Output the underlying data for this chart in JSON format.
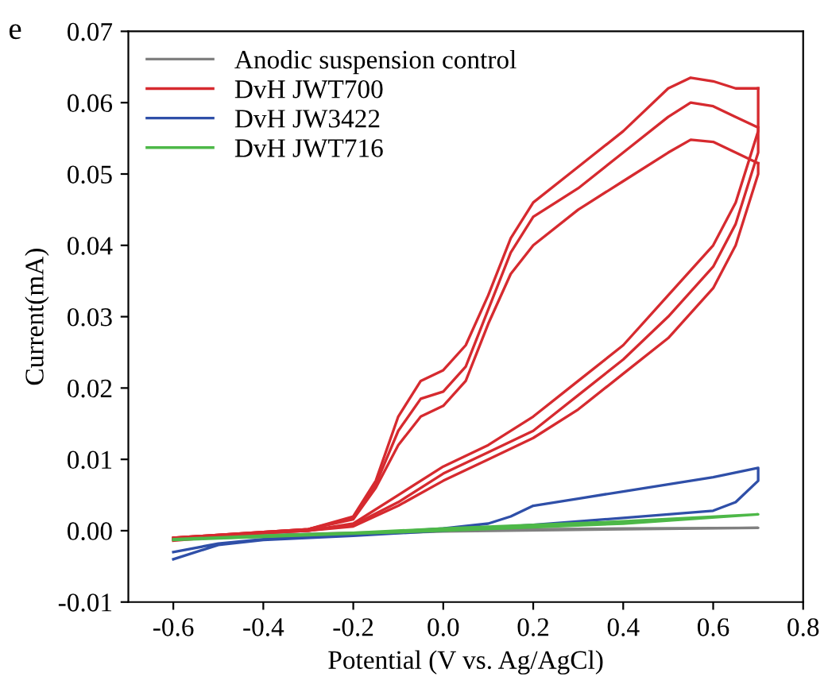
{
  "chart_data": {
    "type": "line",
    "xlabel": "Potential (V vs. Ag/AgCl)",
    "ylabel": "Current(mA)",
    "annotations": [
      "e"
    ],
    "xlim": [
      -0.7,
      0.8
    ],
    "xticks": [
      {
        "value": -0.6,
        "label": "-0.6"
      },
      {
        "value": -0.4,
        "label": "-0.4"
      },
      {
        "value": -0.2,
        "label": "-0.2"
      },
      {
        "value": 0.0,
        "label": "0.0"
      },
      0.2,
      0.4,
      0.6,
      0.8
    ],
    "ylim": [
      -0.01,
      0.07
    ],
    "yticks": [
      {
        "value": -0.01,
        "label": "-0.01"
      },
      {
        "value": 0.0,
        "label": "0.00"
      },
      0.01,
      0.02,
      0.03,
      0.04,
      0.05,
      0.06,
      0.07
    ],
    "grid": false,
    "legend": "top left",
    "marker": "none",
    "line_style": "solid",
    "series": [
      {
        "name": "Anodic suspension control",
        "color": "#808080",
        "x": [
          -0.6,
          -0.4,
          -0.2,
          0.0,
          0.2,
          0.4,
          0.7,
          0.4,
          0.0,
          -0.6
        ],
        "values": [
          -0.001,
          -0.0006,
          -0.0003,
          0.0,
          0.0002,
          0.0003,
          0.0004,
          0.0002,
          -0.0001,
          -0.0012
        ]
      },
      {
        "name": "DvH JWT700",
        "color": "#d62a2f",
        "x": [
          -0.6,
          -0.4,
          -0.3,
          -0.2,
          -0.15,
          -0.1,
          -0.05,
          0.0,
          0.05,
          0.1,
          0.15,
          0.2,
          0.3,
          0.4,
          0.5,
          0.55,
          0.6,
          0.65,
          0.7
        ],
        "values": [
          -0.001,
          -0.0002,
          0.0002,
          0.002,
          0.007,
          0.016,
          0.021,
          0.0225,
          0.026,
          0.033,
          0.041,
          0.046,
          0.051,
          0.056,
          0.062,
          0.0635,
          0.063,
          0.062,
          0.062
        ]
      },
      {
        "color": "#d62a2f",
        "x": [
          0.7,
          0.7,
          0.65,
          0.6,
          0.5,
          0.4,
          0.3,
          0.2,
          0.1,
          0.0,
          -0.1,
          -0.2,
          -0.3,
          -0.4,
          -0.6,
          -0.6,
          -0.4,
          -0.3,
          -0.2,
          -0.15,
          -0.1,
          -0.05,
          0.0,
          0.05,
          0.1,
          0.15,
          0.2,
          0.3,
          0.4,
          0.5,
          0.55,
          0.6,
          0.65,
          0.7
        ],
        "values": [
          0.062,
          0.056,
          0.046,
          0.04,
          0.033,
          0.026,
          0.021,
          0.016,
          0.012,
          0.009,
          0.005,
          0.001,
          0.0,
          -0.0003,
          -0.0012,
          -0.001,
          -0.0002,
          0.0002,
          0.0018,
          0.0065,
          0.014,
          0.0185,
          0.0195,
          0.023,
          0.031,
          0.039,
          0.044,
          0.048,
          0.053,
          0.058,
          0.06,
          0.0595,
          0.058,
          0.0565
        ]
      },
      {
        "color": "#d62a2f",
        "x": [
          0.7,
          0.7,
          0.65,
          0.6,
          0.5,
          0.4,
          0.3,
          0.2,
          0.1,
          0.0,
          -0.1,
          -0.2,
          -0.3,
          -0.4,
          -0.6,
          -0.6,
          -0.4,
          -0.3,
          -0.2,
          -0.15,
          -0.1,
          -0.05,
          0.0,
          0.05,
          0.1,
          0.15,
          0.2,
          0.3,
          0.4,
          0.5,
          0.55,
          0.6,
          0.65,
          0.7
        ],
        "values": [
          0.0565,
          0.053,
          0.043,
          0.037,
          0.03,
          0.024,
          0.019,
          0.014,
          0.011,
          0.008,
          0.004,
          0.0008,
          0.0,
          -0.0003,
          -0.0013,
          -0.001,
          -0.0002,
          0.0002,
          0.0016,
          0.006,
          0.012,
          0.016,
          0.0175,
          0.021,
          0.029,
          0.036,
          0.04,
          0.045,
          0.049,
          0.053,
          0.0548,
          0.0545,
          0.053,
          0.0515
        ]
      },
      {
        "color": "#d62a2f",
        "x": [
          0.7,
          0.7,
          0.65,
          0.6,
          0.5,
          0.4,
          0.3,
          0.2,
          0.1,
          0.0,
          -0.1,
          -0.2,
          -0.3,
          -0.4,
          -0.6
        ],
        "values": [
          0.0515,
          0.05,
          0.04,
          0.034,
          0.027,
          0.022,
          0.017,
          0.013,
          0.01,
          0.007,
          0.0035,
          0.0006,
          0.0,
          -0.0003,
          -0.0014
        ]
      },
      {
        "name": "DvH JW3422",
        "color": "#2f4fa8",
        "x": [
          -0.6,
          -0.5,
          -0.4,
          -0.2,
          0.0,
          0.1,
          0.15,
          0.2,
          0.3,
          0.4,
          0.5,
          0.6,
          0.7,
          0.7,
          0.65,
          0.6,
          0.4,
          0.2,
          0.0,
          -0.2,
          -0.4,
          -0.5,
          -0.6
        ],
        "values": [
          -0.003,
          -0.0018,
          -0.0012,
          -0.0005,
          0.0003,
          0.001,
          0.002,
          0.0035,
          0.0045,
          0.0055,
          0.0065,
          0.0075,
          0.0088,
          0.007,
          0.004,
          0.0028,
          0.0018,
          0.0008,
          0.0,
          -0.0007,
          -0.0013,
          -0.002,
          -0.004
        ]
      },
      {
        "name": "DvH JWT716",
        "color": "#4db848",
        "x": [
          -0.6,
          -0.4,
          -0.2,
          0.0,
          0.2,
          0.4,
          0.7,
          0.4,
          0.2,
          0.0,
          -0.2,
          -0.6
        ],
        "values": [
          -0.0012,
          -0.0007,
          -0.0003,
          0.0003,
          0.0008,
          0.0013,
          0.0023,
          0.001,
          0.0005,
          0.0,
          -0.0004,
          -0.0013
        ]
      }
    ]
  }
}
